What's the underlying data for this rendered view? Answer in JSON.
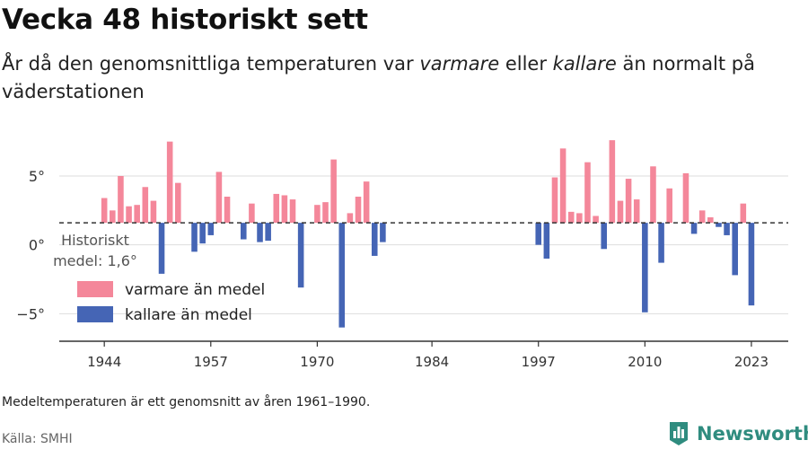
{
  "header": {
    "title": "Vecka 48 historiskt sett",
    "subtitle_part1": "År då den genomsnittliga temperaturen var ",
    "subtitle_em1": "varmare",
    "subtitle_part2": " eller ",
    "subtitle_em2": "kallare",
    "subtitle_part3": " än normalt på väderstationen"
  },
  "colors": {
    "warmer": "#f4879a",
    "colder": "#4565b5",
    "brand": "#2f8c7f"
  },
  "chart_data": {
    "type": "bar",
    "baseline": 1.6,
    "baseline_label_line1": "Historiskt",
    "baseline_label_line2": "medel: 1,6°",
    "ylim": [
      -7,
      8
    ],
    "xlim": [
      1938.5,
      2027.5
    ],
    "yticks": [
      5,
      0,
      -5
    ],
    "ytick_labels": [
      "5°",
      "0°",
      "−5°"
    ],
    "xticks": [
      1944,
      1957,
      1970,
      1984,
      1997,
      2010,
      2023
    ],
    "xtick_labels": [
      "1944",
      "1957",
      "1970",
      "1984",
      "1997",
      "2010",
      "2023"
    ],
    "legend": [
      {
        "key": "warmer",
        "label": "varmare än medel"
      },
      {
        "key": "colder",
        "label": "kallare än medel"
      }
    ],
    "series": [
      {
        "x": 1944,
        "y": 3.4
      },
      {
        "x": 1945,
        "y": 2.5
      },
      {
        "x": 1946,
        "y": 5.0
      },
      {
        "x": 1947,
        "y": 2.8
      },
      {
        "x": 1948,
        "y": 2.9
      },
      {
        "x": 1949,
        "y": 4.2
      },
      {
        "x": 1950,
        "y": 3.2
      },
      {
        "x": 1951,
        "y": -2.1
      },
      {
        "x": 1952,
        "y": 7.5
      },
      {
        "x": 1953,
        "y": 4.5
      },
      {
        "x": 1955,
        "y": -0.5
      },
      {
        "x": 1956,
        "y": 0.1
      },
      {
        "x": 1957,
        "y": 0.7
      },
      {
        "x": 1958,
        "y": 5.3
      },
      {
        "x": 1959,
        "y": 3.5
      },
      {
        "x": 1961,
        "y": 0.4
      },
      {
        "x": 1962,
        "y": 3.0
      },
      {
        "x": 1963,
        "y": 0.2
      },
      {
        "x": 1964,
        "y": 0.3
      },
      {
        "x": 1965,
        "y": 3.7
      },
      {
        "x": 1966,
        "y": 3.6
      },
      {
        "x": 1967,
        "y": 3.3
      },
      {
        "x": 1968,
        "y": -3.1
      },
      {
        "x": 1970,
        "y": 2.9
      },
      {
        "x": 1971,
        "y": 3.1
      },
      {
        "x": 1972,
        "y": 6.2
      },
      {
        "x": 1973,
        "y": -6.0
      },
      {
        "x": 1974,
        "y": 2.3
      },
      {
        "x": 1975,
        "y": 3.5
      },
      {
        "x": 1976,
        "y": 4.6
      },
      {
        "x": 1977,
        "y": -0.8
      },
      {
        "x": 1978,
        "y": 0.2
      },
      {
        "x": 1997,
        "y": 0.0
      },
      {
        "x": 1998,
        "y": -1.0
      },
      {
        "x": 1999,
        "y": 4.9
      },
      {
        "x": 2000,
        "y": 7.0
      },
      {
        "x": 2001,
        "y": 2.4
      },
      {
        "x": 2002,
        "y": 2.3
      },
      {
        "x": 2003,
        "y": 6.0
      },
      {
        "x": 2004,
        "y": 2.1
      },
      {
        "x": 2005,
        "y": -0.3
      },
      {
        "x": 2006,
        "y": 7.6
      },
      {
        "x": 2007,
        "y": 3.2
      },
      {
        "x": 2008,
        "y": 4.8
      },
      {
        "x": 2009,
        "y": 3.3
      },
      {
        "x": 2010,
        "y": -4.9
      },
      {
        "x": 2011,
        "y": 5.7
      },
      {
        "x": 2012,
        "y": -1.3
      },
      {
        "x": 2013,
        "y": 4.1
      },
      {
        "x": 2015,
        "y": 5.2
      },
      {
        "x": 2016,
        "y": 0.8
      },
      {
        "x": 2017,
        "y": 2.5
      },
      {
        "x": 2018,
        "y": 2.0
      },
      {
        "x": 2019,
        "y": 1.3
      },
      {
        "x": 2020,
        "y": 0.7
      },
      {
        "x": 2021,
        "y": -2.2
      },
      {
        "x": 2022,
        "y": 3.0
      },
      {
        "x": 2023,
        "y": -4.4
      }
    ]
  },
  "footnote": "Medeltemperaturen är ett genomsnitt av åren 1961–1990.",
  "source": "Källa: SMHI",
  "brand": {
    "logo_icon": "bar-chart-logo-icon",
    "name": "Newsworthy"
  }
}
